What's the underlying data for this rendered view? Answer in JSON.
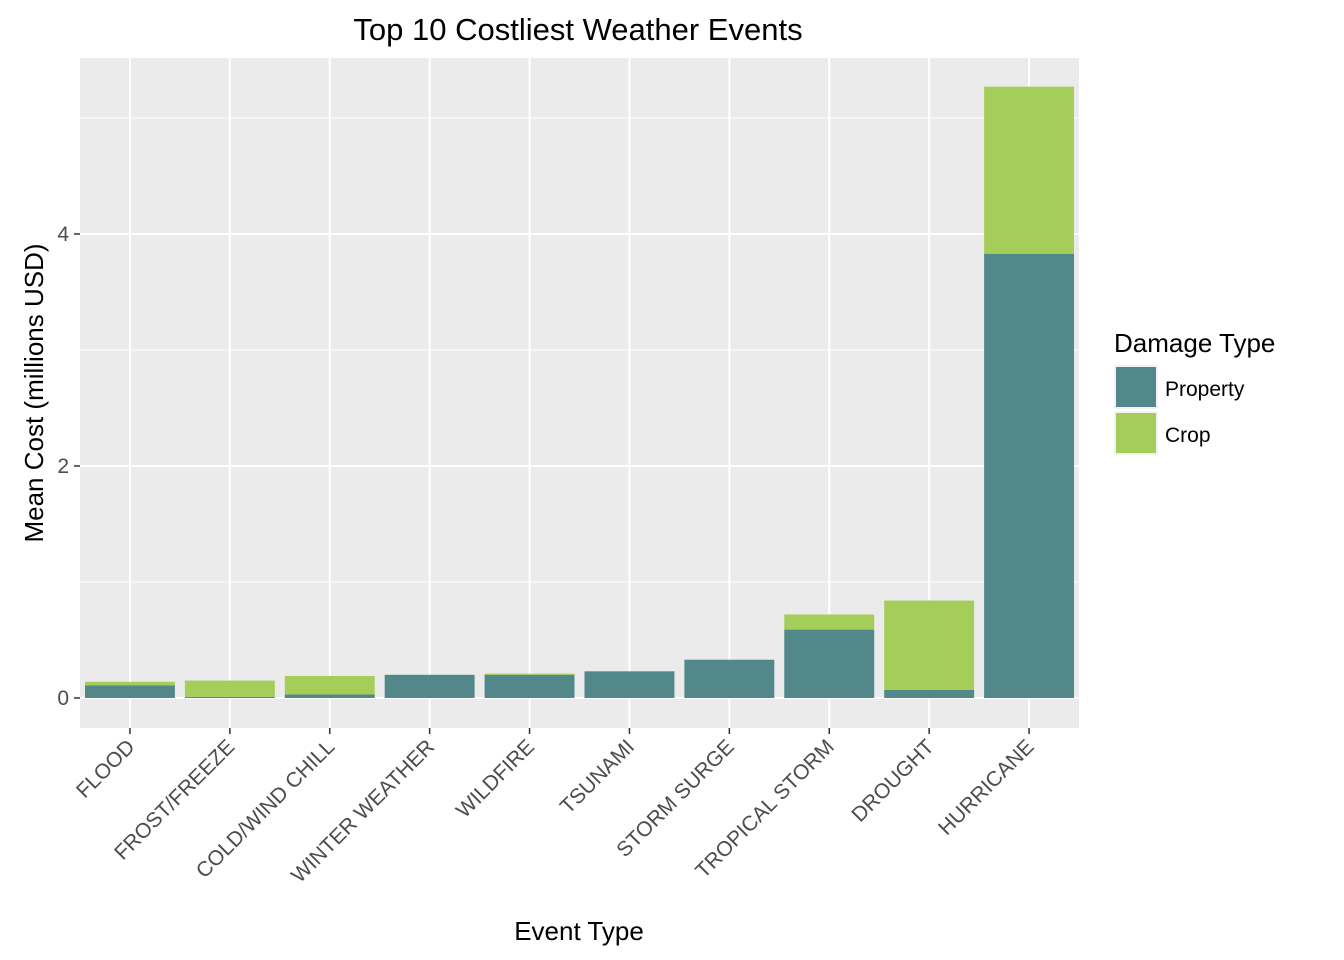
{
  "chart_data": {
    "type": "bar",
    "stacked": true,
    "title": "Top 10 Costliest Weather Events",
    "xlabel": "Event Type",
    "ylabel": "Mean Cost (millions USD)",
    "categories": [
      "FLOOD",
      "FROST/FREEZE",
      "COLD/WIND CHILL",
      "WINTER WEATHER",
      "WILDFIRE",
      "TSUNAMI",
      "STORM SURGE",
      "TROPICAL STORM",
      "DROUGHT",
      "HURRICANE"
    ],
    "series": [
      {
        "name": "Property",
        "values": [
          0.11,
          0.01,
          0.03,
          0.2,
          0.2,
          0.23,
          0.33,
          0.59,
          0.07,
          3.83
        ],
        "color": "#52888a"
      },
      {
        "name": "Crop",
        "values": [
          0.03,
          0.14,
          0.16,
          0.0,
          0.01,
          0.0,
          0.0,
          0.13,
          0.77,
          1.44
        ],
        "color": "#a4cd5a"
      }
    ],
    "ylim": [
      -0.25,
      5.5
    ],
    "yticks": [
      0,
      2,
      4
    ],
    "ytick_labels": [
      "0",
      "2",
      "4"
    ],
    "grid": true,
    "panel_background": "#ebebeb",
    "legend": {
      "title": "Damage Type",
      "placement": "right",
      "entries": [
        "Property",
        "Crop"
      ]
    }
  }
}
